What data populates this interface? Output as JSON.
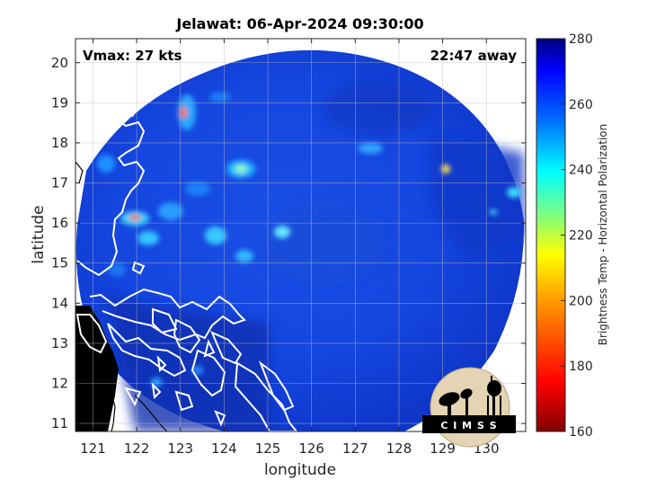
{
  "title": "Jelawat: 06-Apr-2024 09:30:00",
  "vmax_label": "Vmax: 27 kts",
  "distance_label": "22:47 away",
  "xlabel": "longitude",
  "ylabel": "latitude",
  "xticks": [
    "121",
    "122",
    "123",
    "124",
    "125",
    "126",
    "127",
    "128",
    "129",
    "130"
  ],
  "yticks": [
    "11",
    "12",
    "13",
    "14",
    "15",
    "16",
    "17",
    "18",
    "19",
    "20"
  ],
  "colorbar": {
    "label": "Brightness Temp - Horizontal Polarization",
    "ticks": [
      "160",
      "180",
      "200",
      "220",
      "240",
      "260",
      "280"
    ],
    "range": [
      160,
      280
    ]
  },
  "logo": {
    "text": "C I M S S"
  },
  "colors": {
    "swath": "#1446e6",
    "swath_dark": "#0d2fb8",
    "coast": "#ffffff",
    "land": "#000000"
  },
  "chart_data": {
    "type": "heatmap",
    "title": "Jelawat: 06-Apr-2024 09:30:00",
    "xlabel": "longitude",
    "ylabel": "latitude",
    "xlim": [
      120.6,
      130.9
    ],
    "ylim": [
      10.8,
      20.6
    ],
    "colorbar_label": "Brightness Temp - Horizontal Polarization",
    "clim": [
      160,
      280
    ],
    "grid": true
  }
}
